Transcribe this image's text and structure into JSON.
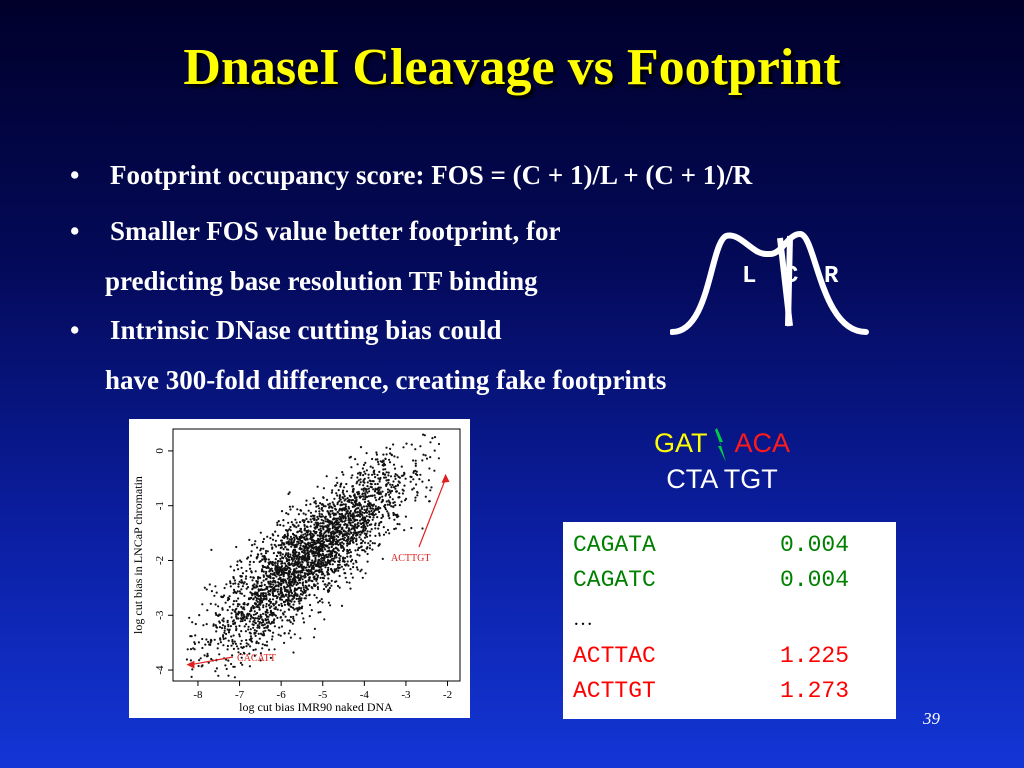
{
  "slide": {
    "title": "DnaseI Cleavage vs Footprint",
    "page_number": "39"
  },
  "bullets": [
    {
      "text": "Footprint occupancy score: FOS = (C + 1)/L + (C + 1)/R",
      "continuation": ""
    },
    {
      "text": "Smaller FOS value better footprint, for",
      "continuation": "predicting base resolution TF binding"
    },
    {
      "text": "Intrinsic DNase cutting bias could",
      "continuation": "have 300-fold difference, creating fake footprints"
    }
  ],
  "bullet_glyph": "•",
  "lcr_diagram": {
    "labels": [
      "L",
      "C",
      "R"
    ]
  },
  "sequence": {
    "top_left": "GAT",
    "top_right": "ACA",
    "bottom": "CTA TGT",
    "colors": {
      "left": "#ffff00",
      "right": "#ff1a1a",
      "cut": "#00cc44"
    }
  },
  "bias_table": {
    "rows": [
      {
        "seq": "CAGATA",
        "value": "0.004",
        "color": "#008000"
      },
      {
        "seq": "CAGATC",
        "value": "0.004",
        "color": "#008000"
      },
      {
        "seq": "ACTTAC",
        "value": "1.225",
        "color": "#ff0000"
      },
      {
        "seq": "ACTTGT",
        "value": "1.273",
        "color": "#ff0000"
      }
    ],
    "ellipsis": "…"
  },
  "chart_data": {
    "type": "scatter",
    "xlabel": "log cut bias IMR90 naked DNA",
    "ylabel": "log cut bias in LNCaP chromatin",
    "xticks": [
      "-8",
      "-7",
      "-6",
      "-5",
      "-4",
      "-3",
      "-2"
    ],
    "yticks": [
      "0",
      "-1",
      "-2",
      "-3",
      "-4"
    ],
    "xlim": [
      -8.6,
      -1.7
    ],
    "ylim": [
      -4.2,
      0.4
    ],
    "trend": {
      "slope": 0.62,
      "intercept": 1.35,
      "x_range": [
        -8.3,
        -2.2
      ],
      "spread": 0.45
    },
    "point_count": 3000,
    "annotations": [
      {
        "label": "ACTTGT",
        "x": -2.0,
        "y": -0.4,
        "color": "#e02020"
      },
      {
        "label": "CACATT",
        "x": -8.3,
        "y": -3.9,
        "color": "#e02020"
      }
    ]
  }
}
